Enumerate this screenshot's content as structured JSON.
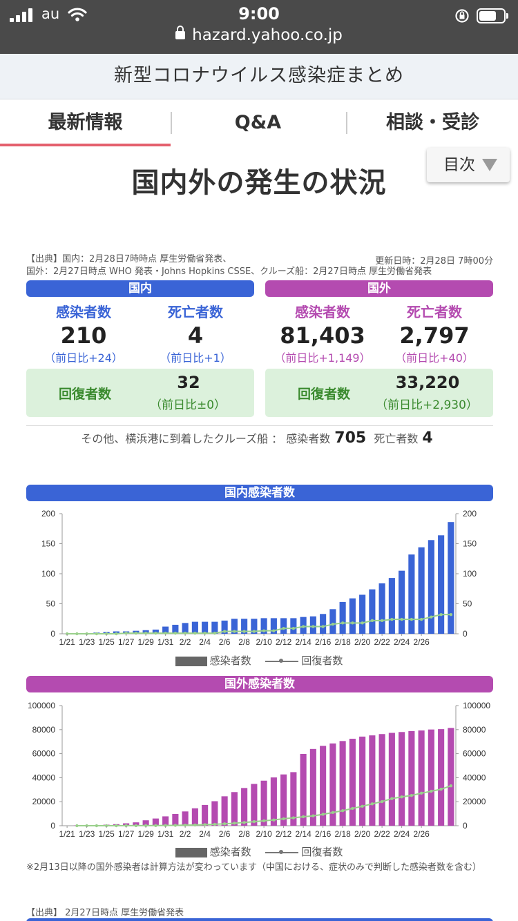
{
  "status_bar": {
    "carrier": "au",
    "time": "9:00",
    "url": "hazard.yahoo.co.jp",
    "battery_level": 0.7
  },
  "site_title": "新型コロナウイルス感染症まとめ",
  "tabs": [
    {
      "label": "最新情報",
      "active": true
    },
    {
      "label": "Q&A",
      "active": false
    },
    {
      "label": "相談・受診",
      "active": false
    }
  ],
  "toc_label": "目次",
  "page_title": "国内外の発生の状況",
  "source": {
    "line1": "【出典】国内：2月28日7時時点 厚生労働省発表、",
    "line2": "国外：2月27日時点 WHO 発表・Johns Hopkins CSSE、クルーズ船：2月27日時点 厚生労働省発表",
    "updated": "更新日時：2月28日 7時00分"
  },
  "domestic": {
    "heading": "国内",
    "infected_label": "感染者数",
    "infected": "210",
    "infected_diff": "（前日比+24）",
    "deaths_label": "死亡者数",
    "deaths": "4",
    "deaths_diff": "（前日比+1）",
    "recovered_label": "回復者数",
    "recovered": "32",
    "recovered_diff": "（前日比±0）"
  },
  "overseas": {
    "heading": "国外",
    "infected_label": "感染者数",
    "infected": "81,403",
    "infected_diff": "（前日比+1,149）",
    "deaths_label": "死亡者数",
    "deaths": "2,797",
    "deaths_diff": "（前日比+40）",
    "recovered_label": "回復者数",
    "recovered": "33,220",
    "recovered_diff": "（前日比+2,930）"
  },
  "cruise": {
    "text": "その他、横浜港に到着したクルーズ船 ：",
    "infected_label": "感染者数",
    "infected": "705",
    "deaths_label": "死亡者数",
    "deaths": "4"
  },
  "colors": {
    "blue": "#3a64d6",
    "purple": "#b44bb0",
    "green_bg": "#dcf1dc",
    "green_text": "#3a8a2e",
    "recovered_line": "#9ad08c"
  },
  "legend": {
    "bar": "感染者数",
    "line": "回復者数"
  },
  "chart_data": [
    {
      "type": "bar",
      "title": "国内感染者数",
      "x_tick_labels": [
        "1/21",
        "1/23",
        "1/25",
        "1/27",
        "1/29",
        "1/31",
        "2/2",
        "2/4",
        "2/6",
        "2/8",
        "2/10",
        "2/12",
        "2/14",
        "2/16",
        "2/18",
        "2/20",
        "2/22",
        "2/24",
        "2/26"
      ],
      "ylim": [
        0,
        200
      ],
      "y_ticks": [
        0,
        50,
        100,
        150,
        200
      ],
      "series": [
        {
          "name": "感染者数",
          "type": "bar",
          "values": [
            0,
            1,
            1,
            2,
            3,
            4,
            4,
            5,
            6,
            7,
            12,
            15,
            18,
            20,
            20,
            20,
            22,
            25,
            25,
            25,
            26,
            26,
            26,
            26,
            28,
            29,
            33,
            41,
            53,
            59,
            65,
            74,
            84,
            93,
            105,
            132,
            144,
            156,
            164,
            186
          ]
        },
        {
          "name": "回復者数",
          "type": "line",
          "values": [
            0,
            0,
            0,
            0,
            0,
            0,
            1,
            1,
            1,
            1,
            1,
            1,
            1,
            1,
            1,
            1,
            4,
            4,
            4,
            4,
            5,
            5,
            9,
            9,
            12,
            12,
            12,
            16,
            18,
            18,
            18,
            22,
            22,
            24,
            24,
            24,
            24,
            28,
            32,
            32
          ]
        }
      ]
    },
    {
      "type": "bar",
      "title": "国外感染者数",
      "x_tick_labels": [
        "1/21",
        "1/23",
        "1/25",
        "1/27",
        "1/29",
        "1/31",
        "2/2",
        "2/4",
        "2/6",
        "2/8",
        "2/10",
        "2/12",
        "2/14",
        "2/16",
        "2/18",
        "2/20",
        "2/22",
        "2/24",
        "2/26"
      ],
      "ylim": [
        0,
        100000
      ],
      "y_ticks": [
        0,
        20000,
        40000,
        60000,
        80000,
        100000
      ],
      "series": [
        {
          "name": "感染者数",
          "type": "bar",
          "values": [
            300,
            450,
            550,
            850,
            1300,
            2000,
            2800,
            4500,
            6000,
            7800,
            9800,
            11900,
            14500,
            17300,
            20400,
            24500,
            28000,
            31400,
            34800,
            37500,
            40200,
            42700,
            44600,
            59800,
            63900,
            66500,
            68500,
            70500,
            72400,
            74200,
            75200,
            76300,
            77300,
            78000,
            78800,
            79300,
            80100,
            80400,
            81400
          ]
        },
        {
          "name": "回復者数",
          "type": "line",
          "values": [
            0,
            0,
            0,
            0,
            0,
            50,
            60,
            100,
            130,
            200,
            300,
            480,
            600,
            900,
            1200,
            1600,
            2100,
            2700,
            3400,
            4100,
            4800,
            5800,
            6600,
            7500,
            8200,
            9500,
            11000,
            12500,
            14400,
            16200,
            18200,
            20100,
            22600,
            24000,
            25200,
            27100,
            28700,
            30400,
            33220
          ]
        }
      ]
    }
  ],
  "note": "※2月13日以降の国外感染者は計算方法が変わっています（中国における、症状のみで判断した感染者数を含む）",
  "source2": "【出典】 2月27日時点 厚生労働省発表"
}
